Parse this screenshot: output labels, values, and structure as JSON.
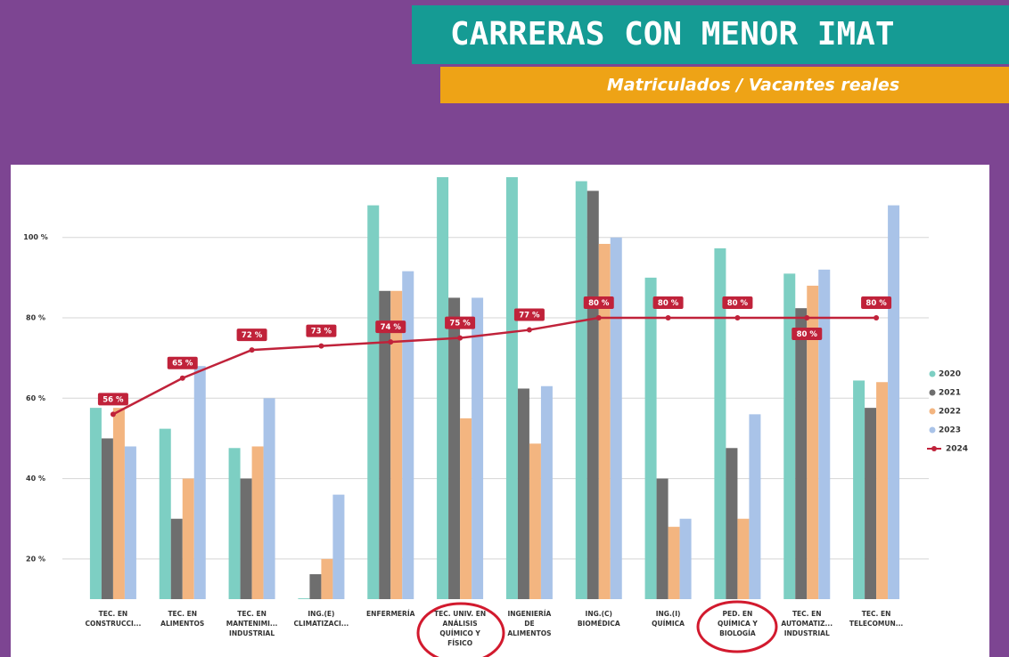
{
  "chart_data": {
    "type": "bar",
    "title": "CARRERAS CON MENOR IMAT",
    "subtitle": "Matriculados / Vacantes reales",
    "categories": [
      [
        "TEC. EN",
        "CONSTRUCCI..."
      ],
      [
        "TEC. EN",
        "ALIMENTOS"
      ],
      [
        "TEC. EN",
        "MANTENIMI...",
        "INDUSTRIAL"
      ],
      [
        "ING.(E)",
        "CLIMATIZACI..."
      ],
      [
        "ENFERMERÍA"
      ],
      [
        "TEC. UNIV. EN",
        "ANÁLISIS",
        "QUÍMICO Y",
        "FÍSICO"
      ],
      [
        "INGENIERÍA",
        "DE",
        "ALIMENTOS"
      ],
      [
        "ING.(C)",
        "BIOMÉDICA"
      ],
      [
        "ING.(I)",
        "QUÍMICA"
      ],
      [
        "PED. EN",
        "QUÍMICA Y",
        "BIOLOGÍA"
      ],
      [
        "TEC. EN",
        "AUTOMATIZ...",
        "INDUSTRIAL"
      ],
      [
        "TEC. EN",
        "TELECOMUN..."
      ]
    ],
    "series": [
      {
        "name": "2020",
        "type": "bar",
        "color": "#7dcfc3",
        "values": [
          57.6,
          52.4,
          47.6,
          10.2,
          108,
          115,
          115,
          114,
          90,
          97.3,
          91,
          64.4
        ]
      },
      {
        "name": "2021",
        "type": "bar",
        "color": "#6e6e6e",
        "values": [
          50,
          30,
          40,
          16.2,
          86.7,
          85,
          62.4,
          111.6,
          40,
          47.6,
          82.4,
          57.6
        ]
      },
      {
        "name": "2022",
        "type": "bar",
        "color": "#f3b580",
        "values": [
          57.6,
          40,
          48,
          20,
          86.7,
          55,
          48.7,
          98.4,
          28,
          30,
          88,
          64
        ]
      },
      {
        "name": "2023",
        "type": "bar",
        "color": "#a9c3e8",
        "values": [
          48,
          68,
          60,
          36,
          91.6,
          85,
          63,
          100,
          30,
          56,
          92,
          108
        ]
      },
      {
        "name": "2024",
        "type": "line",
        "color": "#c0223a",
        "values": [
          56,
          65,
          72,
          73,
          74,
          75,
          77,
          80,
          80,
          80,
          80,
          80
        ],
        "value_labels": [
          "56 %",
          "65 %",
          "72 %",
          "73 %",
          "74 %",
          "75 %",
          "77 %",
          "80 %",
          "80 %",
          "80 %",
          "80 %",
          "80 %"
        ]
      }
    ],
    "ylim": [
      10,
      117
    ],
    "yticks": [
      {
        "value": 20,
        "label": "20 %"
      },
      {
        "value": 40,
        "label": "40 %"
      },
      {
        "value": 60,
        "label": "60 %"
      },
      {
        "value": 80,
        "label": "80 %"
      },
      {
        "value": 100,
        "label": "100 %"
      }
    ],
    "grid": true,
    "legend": "right"
  }
}
